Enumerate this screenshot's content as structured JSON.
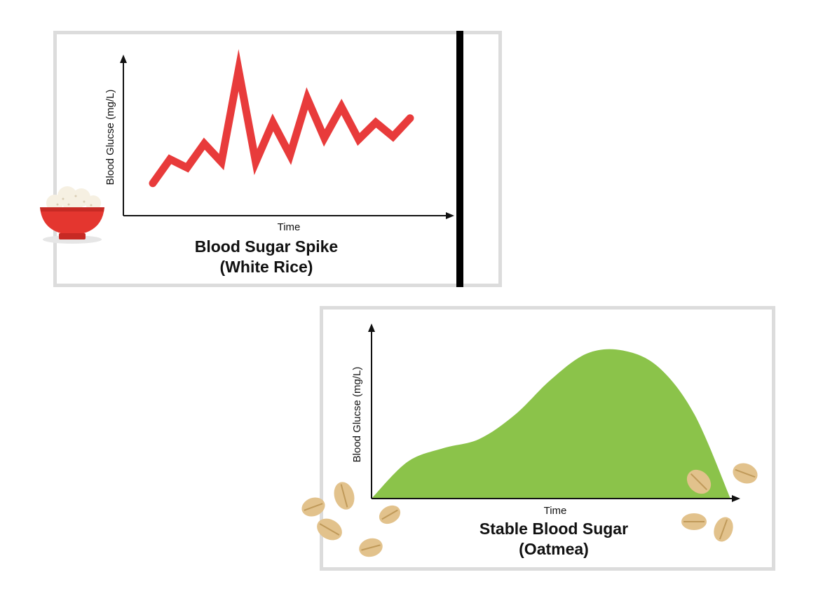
{
  "chart_data": [
    {
      "type": "line",
      "title": "Blood Sugar Spike",
      "subtitle": "(White Rice)",
      "xlabel": "Time",
      "ylabel": "Blood Glucse (mg/L)",
      "x": [
        0,
        1,
        2,
        3,
        4,
        5,
        6,
        7,
        8,
        9,
        10,
        11,
        12,
        13,
        14,
        15
      ],
      "values": [
        14,
        31,
        25,
        42,
        29,
        94,
        29,
        57,
        34,
        74,
        46,
        68,
        45,
        57,
        47,
        60
      ],
      "ylim": [
        0,
        100
      ],
      "grid": false,
      "color": "#e83b3b"
    },
    {
      "type": "area",
      "title": "Stable Blood Sugar",
      "subtitle": "(Oatmea)",
      "xlabel": "Time",
      "ylabel": "Blood Glucse (mg/L)",
      "x": [
        0,
        1,
        2,
        3,
        4,
        5,
        6,
        7,
        8,
        9,
        10
      ],
      "values": [
        0,
        24,
        33,
        39,
        55,
        78,
        95,
        97,
        86,
        55,
        0
      ],
      "ylim": [
        0,
        100
      ],
      "grid": false,
      "color": "#8bc34a"
    }
  ],
  "icons": {
    "rice": "rice-bowl-icon",
    "oat": "oat-flake-icon"
  }
}
